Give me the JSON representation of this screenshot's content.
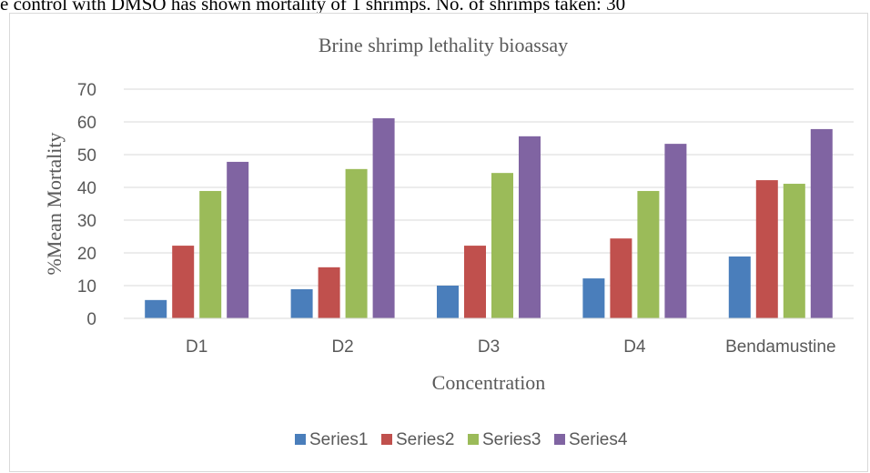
{
  "caption": "e control with DMSO has shown mortality of 1 shrimps. No. of shrimps taken: 30",
  "chart_data": {
    "type": "bar",
    "title": "Brine shrimp lethality bioassay",
    "xlabel": "Concentration",
    "ylabel": "%Mean Mortality",
    "ylim": [
      0,
      70
    ],
    "yticks": [
      0,
      10,
      20,
      30,
      40,
      50,
      60,
      70
    ],
    "categories": [
      "D1",
      "D2",
      "D3",
      "D4",
      "Bendamustine"
    ],
    "series": [
      {
        "name": "Series1",
        "color": "#4a7ebb",
        "values": [
          5.6,
          8.9,
          10,
          12.2,
          18.9
        ]
      },
      {
        "name": "Series2",
        "color": "#c0504d",
        "values": [
          22.2,
          15.6,
          22.2,
          24.4,
          42.2
        ]
      },
      {
        "name": "Series3",
        "color": "#9bbb59",
        "values": [
          38.9,
          45.6,
          44.4,
          38.9,
          41.1
        ]
      },
      {
        "name": "Series4",
        "color": "#8064a2",
        "values": [
          47.8,
          61.1,
          55.6,
          53.3,
          57.8
        ]
      }
    ],
    "grid": true,
    "legend_position": "bottom"
  }
}
